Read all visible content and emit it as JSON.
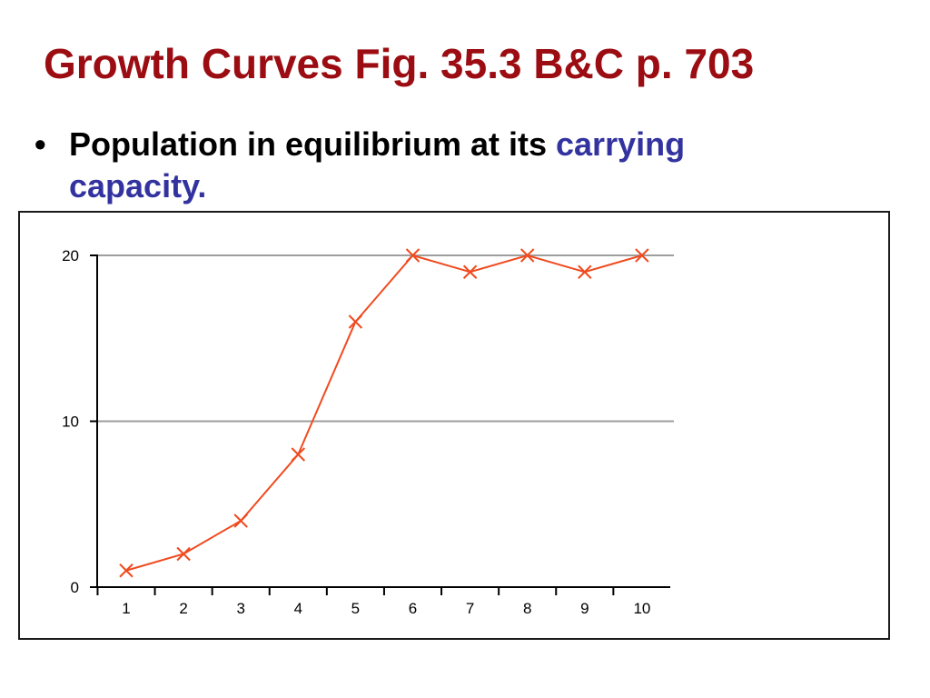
{
  "slide": {
    "title": "Growth Curves Fig. 35.3 B&C p. 703",
    "bullet_marker": "•",
    "bullet_text": "Population in equilibrium at its ",
    "bullet_emphasis": "carrying capacity.",
    "colors": {
      "title": "#9b0d12",
      "emphasis": "#3333a0",
      "series": "#f04a1e",
      "gridline": "#9e9e9e"
    }
  },
  "chart_data": {
    "type": "line",
    "title": "",
    "xlabel": "",
    "ylabel": "",
    "x": [
      1,
      2,
      3,
      4,
      5,
      6,
      7,
      8,
      9,
      10
    ],
    "series": [
      {
        "values": [
          1,
          2,
          4,
          8,
          16,
          20,
          19,
          20,
          19,
          20
        ],
        "marker": "x"
      }
    ],
    "xticks": [
      "1",
      "2",
      "3",
      "4",
      "5",
      "6",
      "7",
      "8",
      "9",
      "10"
    ],
    "yticks": [
      "0",
      "10",
      "20"
    ],
    "ylim": [
      0,
      20
    ],
    "grid": "horizontal at 10 and 20",
    "legend": "none"
  }
}
